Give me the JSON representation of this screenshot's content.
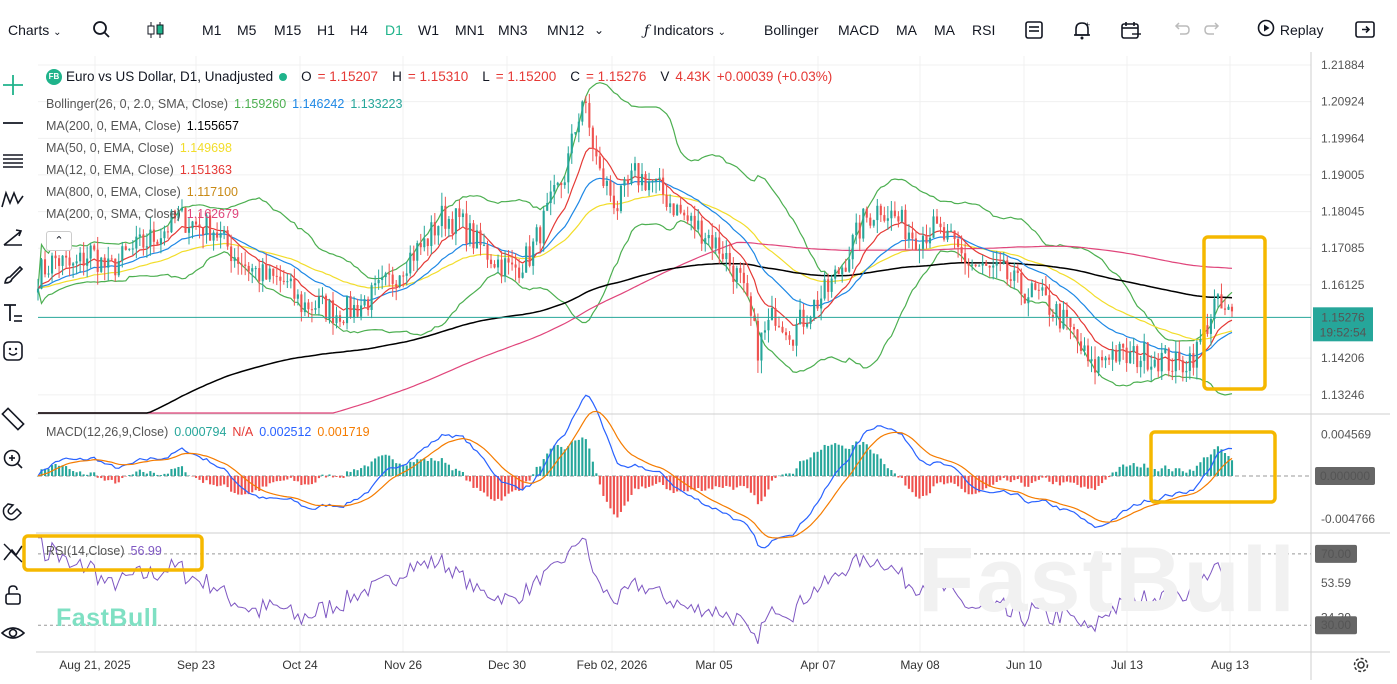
{
  "toolbar": {
    "charts_label": "Charts",
    "timeframes": [
      "M1",
      "M5",
      "M15",
      "H1",
      "H4",
      "D1",
      "W1",
      "MN1",
      "MN3",
      "MN12"
    ],
    "active_timeframe": "D1",
    "indicators_label": "Indicators",
    "quick_indicators": [
      "Bollinger",
      "MACD",
      "MA",
      "MA",
      "RSI"
    ],
    "replay_label": "Replay"
  },
  "legend": {
    "symbol_badge": "FB",
    "title": "Euro vs US Dollar, D1, Unadjusted",
    "ohlc": {
      "o_label": "O",
      "o": "= 1.15207",
      "h_label": "H",
      "h": "= 1.15310",
      "l_label": "L",
      "l": "= 1.15200",
      "c_label": "C",
      "c": "= 1.15276",
      "v_label": "V",
      "v": "4.43K",
      "change": "+0.00039 (+0.03%)"
    },
    "bollinger": {
      "label": "Bollinger(26, 0, 2.0, SMA, Close)",
      "upper": "1.159260",
      "middle": "1.146242",
      "lower": "1.133223"
    },
    "ma_lines": [
      {
        "label": "MA(200, 0, EMA, Close)",
        "value": "1.155657",
        "color": "#000000"
      },
      {
        "label": "MA(50, 0, EMA, Close)",
        "value": "1.149698",
        "color": "#f2dd2b"
      },
      {
        "label": "MA(12, 0, EMA, Close)",
        "value": "1.151363",
        "color": "#e53935"
      },
      {
        "label": "MA(800, 0, EMA, Close)",
        "value": "1.117100",
        "color": "#c98a16"
      },
      {
        "label": "MA(200, 0, SMA, Close)",
        "value": "1.162679",
        "color": "#e0457b"
      }
    ],
    "macd": {
      "label": "MACD(12,26,9,Close)",
      "hist": "0.000794",
      "na": "N/A",
      "macd": "0.002512",
      "signal": "0.001719"
    },
    "rsi": {
      "label": "RSI(14,Close)",
      "value": "56.99"
    }
  },
  "colors": {
    "up": "#26a69a",
    "down": "#ef5350",
    "bollinger": "#4caf50",
    "ema12": "#e53935",
    "ema26": "#1e88e5",
    "ema50": "#f2dd2b",
    "ema200": "#000000",
    "sma200": "#e0457b",
    "macd": "#2962ff",
    "signal": "#f57c00",
    "rsi": "#7e57c2",
    "highlight": "#f5b800",
    "last_price": "#26a69a"
  },
  "price_axis": {
    "ticks": [
      "1.21884",
      "1.20924",
      "1.19964",
      "1.19005",
      "1.18045",
      "1.17085",
      "1.16125",
      "1.14206",
      "1.13246"
    ],
    "last_price": "1.15276",
    "countdown": "19:52:54"
  },
  "macd_axis": {
    "ticks": [
      "0.004569",
      "-0.004766"
    ],
    "zero": "0.000000"
  },
  "rsi_axis": {
    "ticks": [
      "53.59",
      "34.39"
    ],
    "upper": "70.00",
    "lower": "30.00"
  },
  "time_axis": [
    "Aug 21, 2025",
    "Sep 23",
    "Oct 24",
    "Nov 26",
    "Dec 30",
    "Feb 02, 2026",
    "Mar 05",
    "Apr 07",
    "May 08",
    "Jun 10",
    "Jul 13",
    "Aug 13"
  ],
  "watermark": "FastBull",
  "chart_data": {
    "type": "candlestick",
    "title": "Euro vs US Dollar, D1, Unadjusted",
    "xlabel": "",
    "ylabel": "",
    "ylim": [
      1.1277,
      1.2212
    ],
    "x_range": [
      "Aug 2025",
      "Aug 13 2026"
    ],
    "close_path": [
      [
        0,
        1.164
      ],
      [
        5,
        1.168
      ],
      [
        10,
        1.1655
      ],
      [
        15,
        1.17
      ],
      [
        20,
        1.165
      ],
      [
        25,
        1.169
      ],
      [
        30,
        1.172
      ],
      [
        35,
        1.175
      ],
      [
        40,
        1.179
      ],
      [
        45,
        1.177
      ],
      [
        50,
        1.176
      ],
      [
        55,
        1.17
      ],
      [
        60,
        1.166
      ],
      [
        65,
        1.163
      ],
      [
        70,
        1.162
      ],
      [
        75,
        1.156
      ],
      [
        80,
        1.156
      ],
      [
        85,
        1.154
      ],
      [
        90,
        1.155
      ],
      [
        95,
        1.158
      ],
      [
        100,
        1.162
      ],
      [
        105,
        1.168
      ],
      [
        110,
        1.172
      ],
      [
        115,
        1.179
      ],
      [
        120,
        1.178
      ],
      [
        125,
        1.172
      ],
      [
        130,
        1.168
      ],
      [
        135,
        1.165
      ],
      [
        140,
        1.169
      ],
      [
        145,
        1.18
      ],
      [
        150,
        1.19
      ],
      [
        155,
        1.21
      ],
      [
        160,
        1.19
      ],
      [
        165,
        1.182
      ],
      [
        170,
        1.19
      ],
      [
        175,
        1.188
      ],
      [
        180,
        1.183
      ],
      [
        185,
        1.178
      ],
      [
        190,
        1.175
      ],
      [
        195,
        1.17
      ],
      [
        200,
        1.162
      ],
      [
        205,
        1.145
      ],
      [
        210,
        1.154
      ],
      [
        215,
        1.149
      ],
      [
        220,
        1.155
      ],
      [
        225,
        1.16
      ],
      [
        230,
        1.168
      ],
      [
        235,
        1.178
      ],
      [
        240,
        1.182
      ],
      [
        245,
        1.178
      ],
      [
        250,
        1.174
      ],
      [
        255,
        1.176
      ],
      [
        260,
        1.172
      ],
      [
        265,
        1.167
      ],
      [
        270,
        1.165
      ],
      [
        275,
        1.164
      ],
      [
        280,
        1.16
      ],
      [
        285,
        1.158
      ],
      [
        290,
        1.154
      ],
      [
        295,
        1.148
      ],
      [
        300,
        1.139
      ],
      [
        305,
        1.144
      ],
      [
        310,
        1.142
      ],
      [
        315,
        1.143
      ],
      [
        320,
        1.142
      ],
      [
        325,
        1.14
      ],
      [
        330,
        1.144
      ],
      [
        335,
        1.156
      ],
      [
        340,
        1.1528
      ]
    ],
    "bars": 340,
    "series": [
      {
        "name": "Bollinger(26, 0, 2.0, SMA, Close)",
        "last": [
          1.15926,
          1.146242,
          1.133223
        ]
      },
      {
        "name": "MA(200, 0, EMA, Close)",
        "last": 1.155657
      },
      {
        "name": "MA(50, 0, EMA, Close)",
        "last": 1.149698
      },
      {
        "name": "MA(12, 0, EMA, Close)",
        "last": 1.151363
      },
      {
        "name": "MA(800, 0, EMA, Close)",
        "last": 1.1171
      },
      {
        "name": "MA(200, 0, SMA, Close)",
        "last": 1.162679
      }
    ],
    "macd": {
      "ylim": [
        -0.0062,
        0.0062
      ],
      "last_hist": 0.000794,
      "last_macd": 0.002512,
      "last_signal": 0.001719
    },
    "rsi": {
      "ylim": [
        15,
        80
      ],
      "levels": [
        70,
        30
      ],
      "last": 56.99
    },
    "grid": true,
    "legend_position": "top-left"
  }
}
